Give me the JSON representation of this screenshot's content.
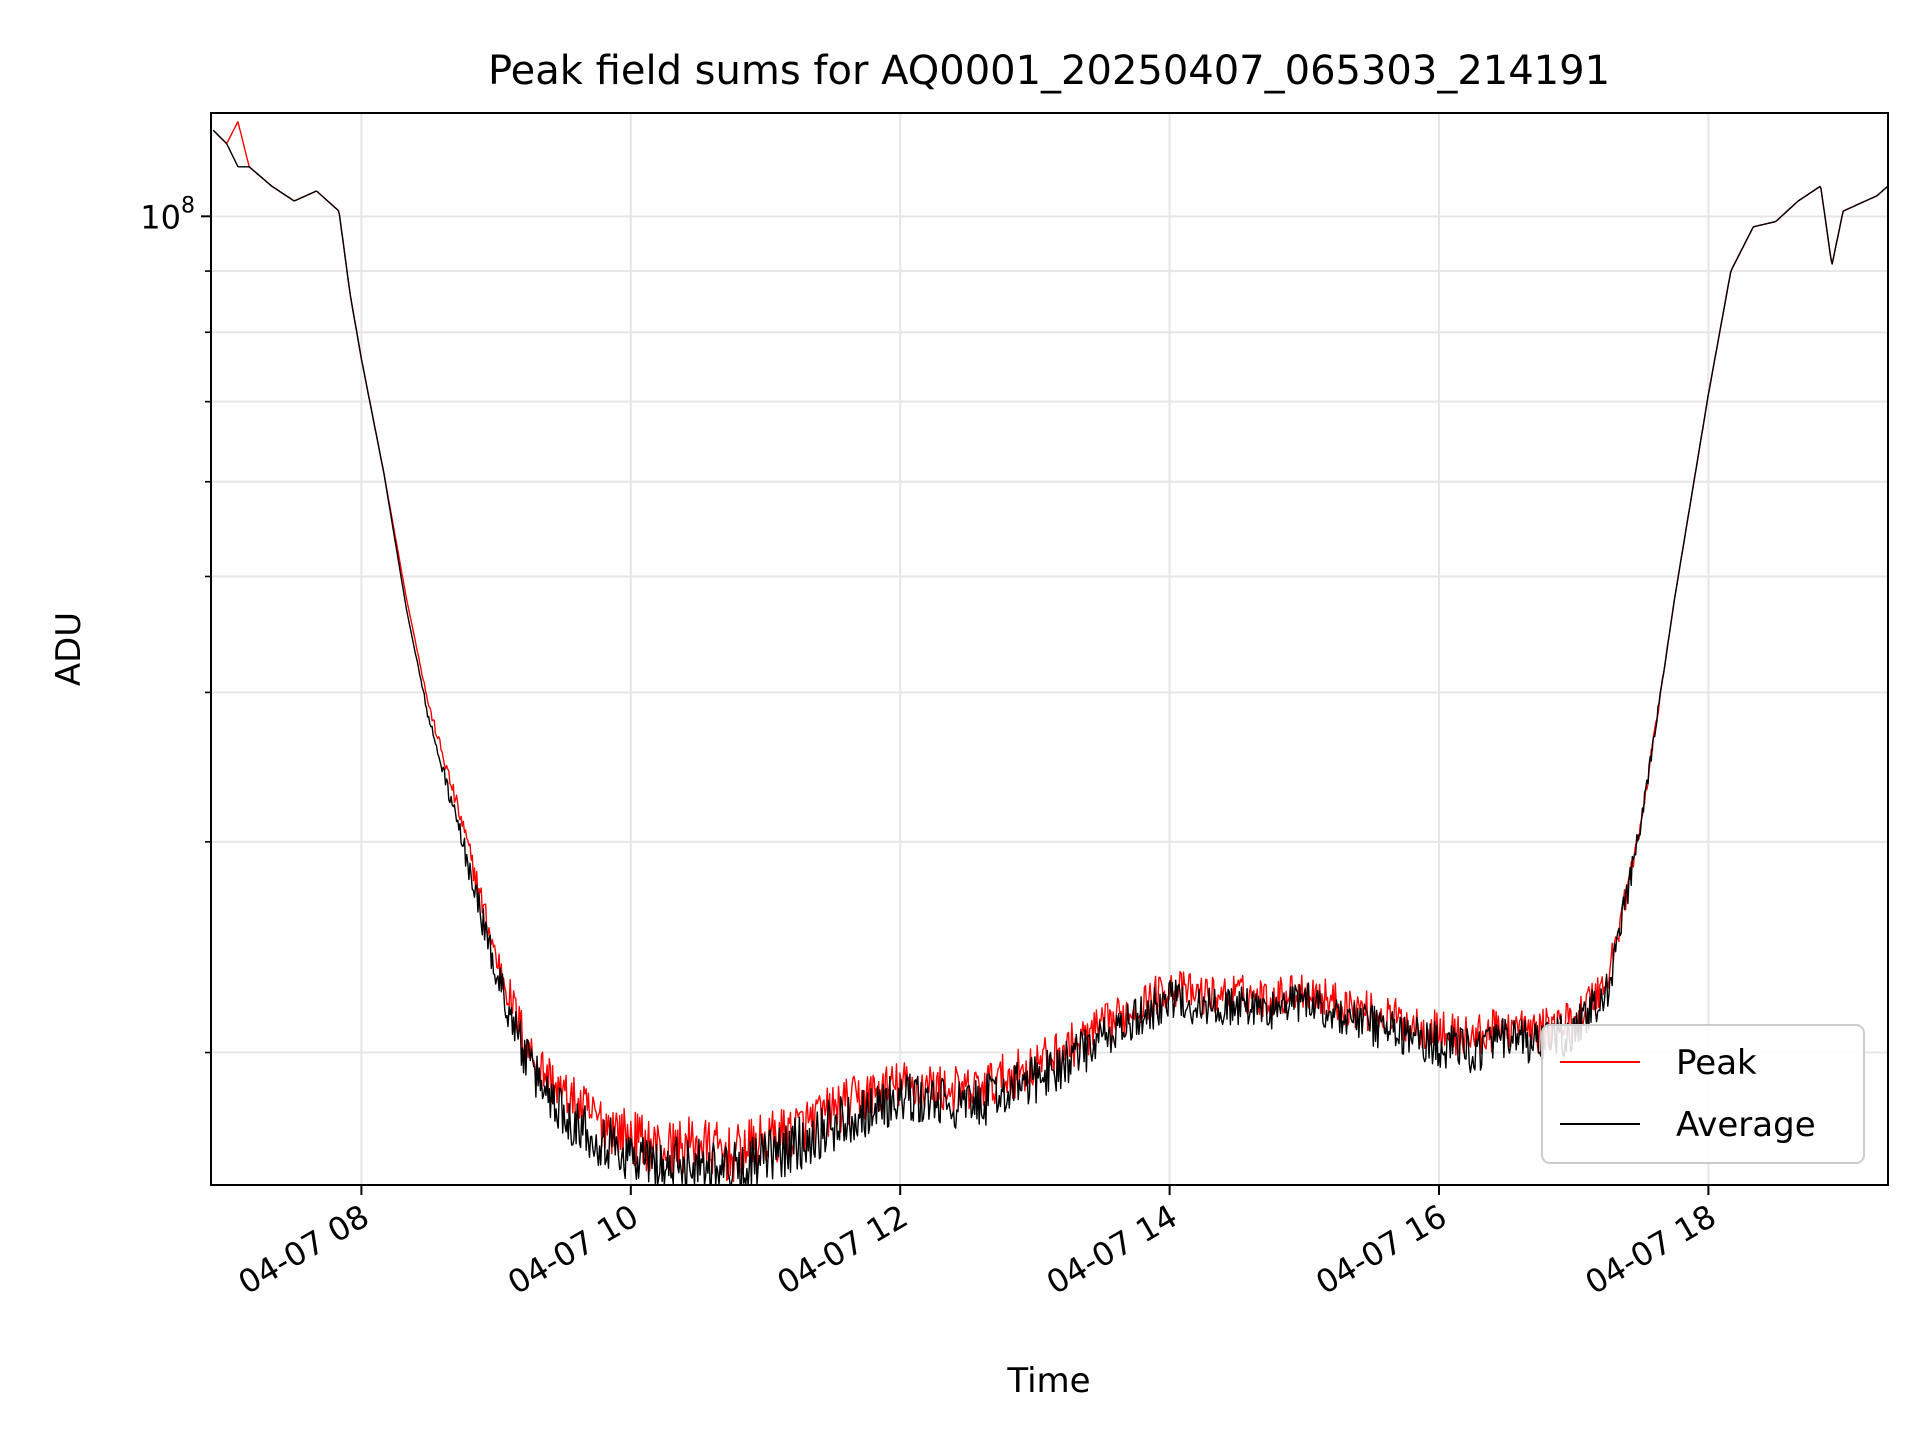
{
  "chart_data": {
    "type": "line",
    "title": "Peak field sums for AQ0001_20250407_065303_214191",
    "xlabel": "Time",
    "ylabel": "ADU",
    "y_scale": "log",
    "grid": true,
    "legend_position": "lower-right",
    "xlim": [
      "2025-04-07 06:53",
      "2025-04-07 19:20"
    ],
    "ylim": [
      15500000,
      122000000
    ],
    "x_tick_labels": [
      "04-07 08",
      "04-07 10",
      "04-07 12",
      "04-07 14",
      "04-07 16",
      "04-07 18"
    ],
    "x_tick_values": [
      "2025-04-07 08:00",
      "2025-04-07 10:00",
      "2025-04-07 12:00",
      "2025-04-07 14:00",
      "2025-04-07 16:00",
      "2025-04-07 18:00"
    ],
    "y_major_tick_labels": [
      {
        "base": "10",
        "exp": "8"
      }
    ],
    "y_major_tick_values": [
      100000000
    ],
    "y_minor_tick_values": [
      20000000,
      30000000,
      40000000,
      50000000,
      60000000,
      70000000,
      80000000,
      90000000
    ],
    "series": [
      {
        "name": "Peak",
        "color": "#ff0000",
        "x": [
          "2025-04-07 06:54",
          "2025-04-07 07:00",
          "2025-04-07 07:05",
          "2025-04-07 07:10",
          "2025-04-07 07:20",
          "2025-04-07 07:30",
          "2025-04-07 07:40",
          "2025-04-07 07:50",
          "2025-04-07 07:55",
          "2025-04-07 08:00",
          "2025-04-07 08:10",
          "2025-04-07 08:20",
          "2025-04-07 08:30",
          "2025-04-07 08:45",
          "2025-04-07 09:00",
          "2025-04-07 09:15",
          "2025-04-07 09:30",
          "2025-04-07 09:45",
          "2025-04-07 10:00",
          "2025-04-07 10:15",
          "2025-04-07 10:30",
          "2025-04-07 10:45",
          "2025-04-07 11:00",
          "2025-04-07 11:15",
          "2025-04-07 11:30",
          "2025-04-07 11:45",
          "2025-04-07 12:00",
          "2025-04-07 12:15",
          "2025-04-07 12:30",
          "2025-04-07 12:45",
          "2025-04-07 13:00",
          "2025-04-07 13:15",
          "2025-04-07 13:30",
          "2025-04-07 13:45",
          "2025-04-07 14:00",
          "2025-04-07 14:15",
          "2025-04-07 14:30",
          "2025-04-07 14:45",
          "2025-04-07 15:00",
          "2025-04-07 15:15",
          "2025-04-07 15:30",
          "2025-04-07 15:45",
          "2025-04-07 16:00",
          "2025-04-07 16:15",
          "2025-04-07 16:30",
          "2025-04-07 16:45",
          "2025-04-07 17:00",
          "2025-04-07 17:15",
          "2025-04-07 17:30",
          "2025-04-07 17:45",
          "2025-04-07 18:00",
          "2025-04-07 18:10",
          "2025-04-07 18:20",
          "2025-04-07 18:30",
          "2025-04-07 18:40",
          "2025-04-07 18:50",
          "2025-04-07 18:55",
          "2025-04-07 19:00",
          "2025-04-07 19:05",
          "2025-04-07 19:15",
          "2025-04-07 19:20"
        ],
        "y": [
          118000000,
          115000000,
          120000000,
          110000000,
          106000000,
          103000000,
          105000000,
          101000000,
          86000000,
          76000000,
          61000000,
          48000000,
          39000000,
          31000000,
          24000000,
          20000000,
          18400000,
          17600000,
          17000000,
          16600000,
          16800000,
          16400000,
          16900000,
          17300000,
          17900000,
          18400000,
          18800000,
          18700000,
          18500000,
          19000000,
          19500000,
          20200000,
          21000000,
          21800000,
          22700000,
          22300000,
          22400000,
          22200000,
          22600000,
          22000000,
          21600000,
          21200000,
          20800000,
          20600000,
          21000000,
          20800000,
          21300000,
          23000000,
          31000000,
          48000000,
          71000000,
          90000000,
          98000000,
          99000000,
          103000000,
          106000000,
          91000000,
          101000000,
          102000000,
          104000000,
          106000000
        ]
      },
      {
        "name": "Average",
        "color": "#000000",
        "x": [
          "2025-04-07 06:54",
          "2025-04-07 07:00",
          "2025-04-07 07:05",
          "2025-04-07 07:10",
          "2025-04-07 07:20",
          "2025-04-07 07:30",
          "2025-04-07 07:40",
          "2025-04-07 07:50",
          "2025-04-07 07:55",
          "2025-04-07 08:00",
          "2025-04-07 08:10",
          "2025-04-07 08:20",
          "2025-04-07 08:30",
          "2025-04-07 08:45",
          "2025-04-07 09:00",
          "2025-04-07 09:15",
          "2025-04-07 09:30",
          "2025-04-07 09:45",
          "2025-04-07 10:00",
          "2025-04-07 10:15",
          "2025-04-07 10:30",
          "2025-04-07 10:45",
          "2025-04-07 11:00",
          "2025-04-07 11:15",
          "2025-04-07 11:30",
          "2025-04-07 11:45",
          "2025-04-07 12:00",
          "2025-04-07 12:15",
          "2025-04-07 12:30",
          "2025-04-07 12:45",
          "2025-04-07 13:00",
          "2025-04-07 13:15",
          "2025-04-07 13:30",
          "2025-04-07 13:45",
          "2025-04-07 14:00",
          "2025-04-07 14:15",
          "2025-04-07 14:30",
          "2025-04-07 14:45",
          "2025-04-07 15:00",
          "2025-04-07 15:15",
          "2025-04-07 15:30",
          "2025-04-07 15:45",
          "2025-04-07 16:00",
          "2025-04-07 16:15",
          "2025-04-07 16:30",
          "2025-04-07 16:45",
          "2025-04-07 17:00",
          "2025-04-07 17:15",
          "2025-04-07 17:30",
          "2025-04-07 17:45",
          "2025-04-07 18:00",
          "2025-04-07 18:10",
          "2025-04-07 18:20",
          "2025-04-07 18:30",
          "2025-04-07 18:40",
          "2025-04-07 18:50",
          "2025-04-07 18:55",
          "2025-04-07 19:00",
          "2025-04-07 19:05",
          "2025-04-07 19:15",
          "2025-04-07 19:20"
        ],
        "y": [
          118000000,
          115000000,
          110000000,
          110000000,
          106000000,
          103000000,
          105000000,
          101000000,
          86000000,
          76000000,
          61000000,
          47000000,
          38000000,
          30000000,
          23300000,
          19400000,
          17800000,
          17000000,
          16400000,
          16000000,
          16200000,
          15900000,
          16300000,
          16800000,
          17400000,
          17900000,
          18300000,
          18200000,
          18000000,
          18500000,
          19000000,
          19700000,
          20500000,
          21300000,
          22200000,
          21800000,
          21900000,
          21700000,
          22100000,
          21500000,
          21100000,
          20700000,
          20300000,
          20100000,
          20500000,
          20300000,
          20800000,
          22500000,
          31000000,
          48000000,
          71000000,
          90000000,
          98000000,
          99000000,
          103000000,
          106000000,
          91000000,
          101000000,
          102000000,
          104000000,
          106000000
        ]
      }
    ]
  }
}
